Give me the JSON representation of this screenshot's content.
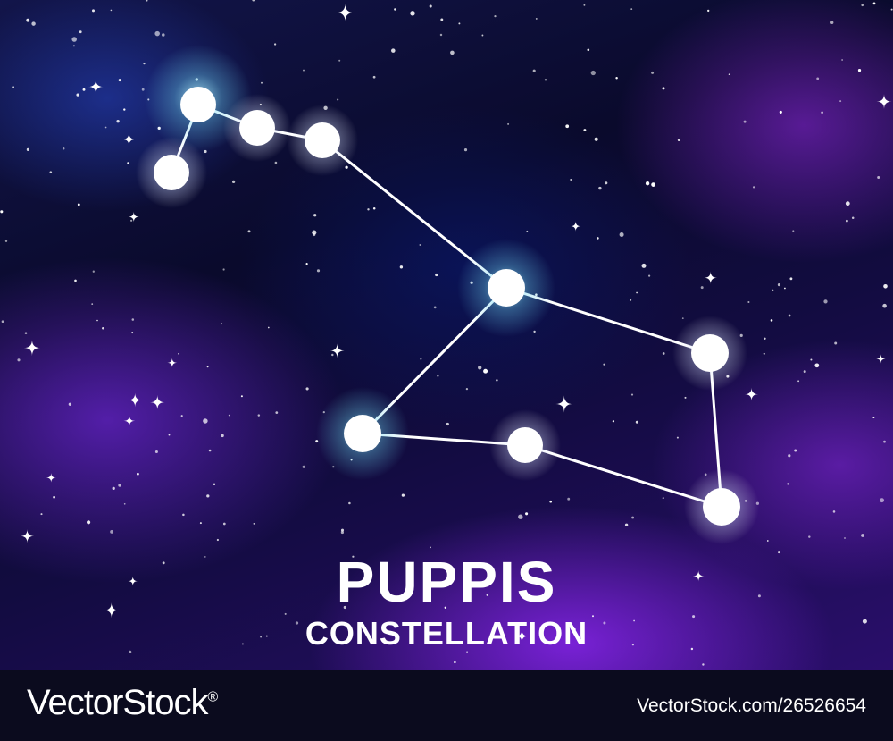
{
  "title": "PUPPIS",
  "subtitle": "CONSTELLATION",
  "footer": {
    "brand": "VectorStock",
    "registered_mark": "®",
    "stock_id": "VectorStock.com/26526654"
  },
  "colors": {
    "star": "#ffffff",
    "glow_cyan": "#8fe9ff",
    "nebula_purple": "#8a2be2",
    "sky_dark": "#05051a",
    "footer_bg": "#0b0b1e"
  }
}
